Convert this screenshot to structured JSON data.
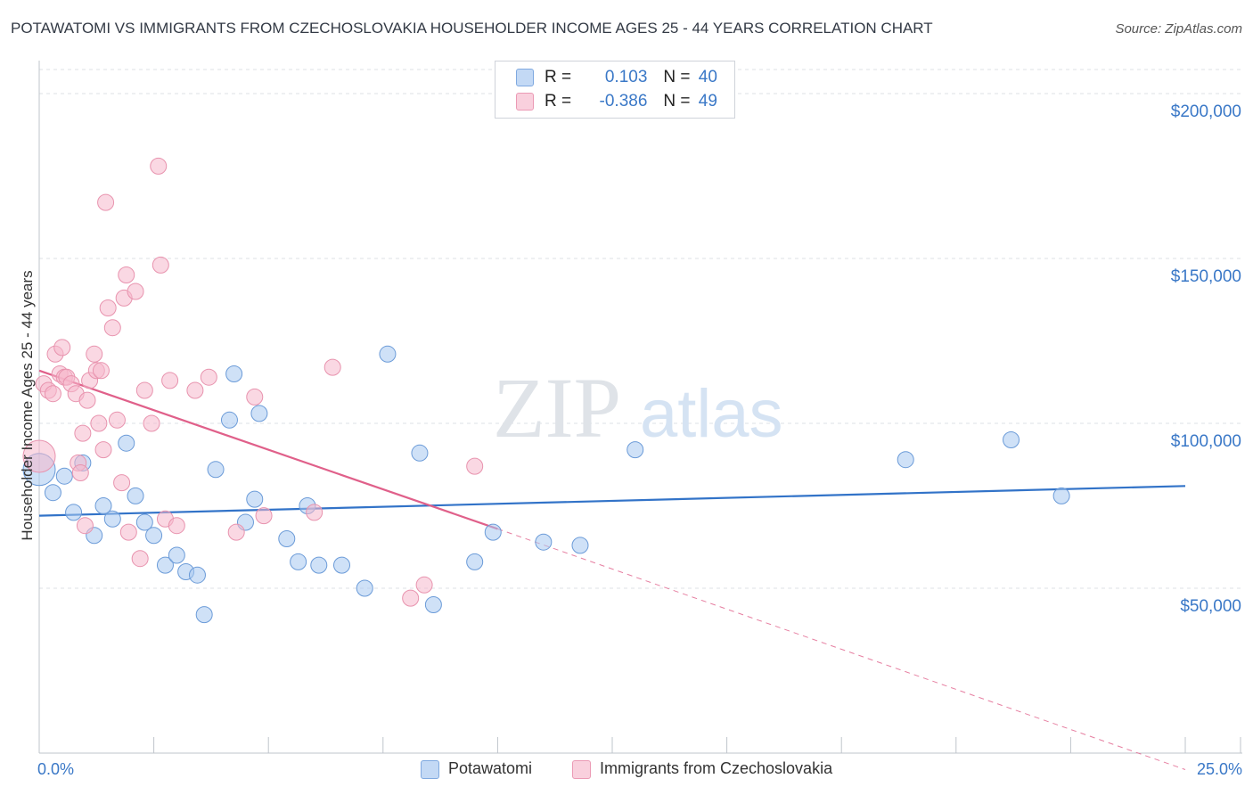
{
  "title": "POTAWATOMI VS IMMIGRANTS FROM CZECHOSLOVAKIA HOUSEHOLDER INCOME AGES 25 - 44 YEARS CORRELATION CHART",
  "source": "Source: ZipAtlas.com",
  "watermark": {
    "zip": "ZIP",
    "atlas": "atlas"
  },
  "legend": {
    "rows": [
      {
        "r_label": "R =",
        "r_value": "0.103",
        "n_label": "N =",
        "n_value": "40",
        "color": "#a8c8f0"
      },
      {
        "r_label": "R =",
        "r_value": "-0.386",
        "n_label": "N =",
        "n_value": "49",
        "color": "#f5b8cc"
      }
    ]
  },
  "chart_data": {
    "type": "scatter",
    "title": "POTAWATOMI VS IMMIGRANTS FROM CZECHOSLOVAKIA HOUSEHOLDER INCOME AGES 25 - 44 YEARS CORRELATION CHART",
    "xlabel": "",
    "ylabel": "Householder Income Ages 25 - 44 years",
    "xlim": [
      0,
      25
    ],
    "ylim": [
      0,
      210000
    ],
    "x_tick_labels": [
      "0.0%",
      "25.0%"
    ],
    "y_ticks": [
      50000,
      100000,
      150000,
      200000
    ],
    "y_tick_labels": [
      "$50,000",
      "$100,000",
      "$150,000",
      "$200,000"
    ],
    "grid": "horizontal dashed",
    "legend_position": "bottom-center",
    "series": [
      {
        "name": "Potawatomi",
        "color": "#a8c8f0",
        "stroke": "#6b9bd8",
        "trend_color": "#3273c8",
        "trend": {
          "x0": 0,
          "y0": 72000,
          "x1": 25,
          "y1": 81000
        },
        "points": [
          [
            0.0,
            86000,
            18
          ],
          [
            0.3,
            79000,
            9
          ],
          [
            0.55,
            84000,
            9
          ],
          [
            0.75,
            73000,
            9
          ],
          [
            0.95,
            88000,
            9
          ],
          [
            1.2,
            66000,
            9
          ],
          [
            1.4,
            75000,
            9
          ],
          [
            1.6,
            71000,
            9
          ],
          [
            1.9,
            94000,
            9
          ],
          [
            2.1,
            78000,
            9
          ],
          [
            2.3,
            70000,
            9
          ],
          [
            2.5,
            66000,
            9
          ],
          [
            2.75,
            57000,
            9
          ],
          [
            3.0,
            60000,
            9
          ],
          [
            3.2,
            55000,
            9
          ],
          [
            3.45,
            54000,
            9
          ],
          [
            3.6,
            42000,
            9
          ],
          [
            3.85,
            86000,
            9
          ],
          [
            4.15,
            101000,
            9
          ],
          [
            4.25,
            115000,
            9
          ],
          [
            4.5,
            70000,
            9
          ],
          [
            4.7,
            77000,
            9
          ],
          [
            4.8,
            103000,
            9
          ],
          [
            5.4,
            65000,
            9
          ],
          [
            5.65,
            58000,
            9
          ],
          [
            5.85,
            75000,
            9
          ],
          [
            6.1,
            57000,
            9
          ],
          [
            6.6,
            57000,
            9
          ],
          [
            7.1,
            50000,
            9
          ],
          [
            7.6,
            121000,
            9
          ],
          [
            8.3,
            91000,
            9
          ],
          [
            8.6,
            45000,
            9
          ],
          [
            9.5,
            58000,
            9
          ],
          [
            9.9,
            67000,
            9
          ],
          [
            11.0,
            64000,
            9
          ],
          [
            11.8,
            63000,
            9
          ],
          [
            13.0,
            92000,
            9
          ],
          [
            18.9,
            89000,
            9
          ],
          [
            21.2,
            95000,
            9
          ],
          [
            22.3,
            78000,
            9
          ]
        ]
      },
      {
        "name": "Immigrants from Czechoslovakia",
        "color": "#f5b8cc",
        "stroke": "#e893ae",
        "trend_color": "#e0608a",
        "trend": {
          "x0": 0,
          "y0": 116000,
          "x1": 10.0,
          "y1": 68000
        },
        "trend_dashed": {
          "x0": 10.0,
          "y0": 68000,
          "x1": 25,
          "y1": -5000
        },
        "points": [
          [
            0.0,
            90000,
            18
          ],
          [
            0.1,
            112000,
            9
          ],
          [
            0.2,
            110000,
            9
          ],
          [
            0.3,
            109000,
            9
          ],
          [
            0.35,
            121000,
            9
          ],
          [
            0.45,
            115000,
            9
          ],
          [
            0.5,
            123000,
            9
          ],
          [
            0.55,
            114000,
            9
          ],
          [
            0.6,
            114000,
            9
          ],
          [
            0.7,
            112000,
            9
          ],
          [
            0.8,
            109000,
            9
          ],
          [
            0.85,
            88000,
            9
          ],
          [
            0.9,
            85000,
            9
          ],
          [
            0.95,
            97000,
            9
          ],
          [
            1.0,
            69000,
            9
          ],
          [
            1.05,
            107000,
            9
          ],
          [
            1.1,
            113000,
            9
          ],
          [
            1.2,
            121000,
            9
          ],
          [
            1.25,
            116000,
            9
          ],
          [
            1.3,
            100000,
            9
          ],
          [
            1.35,
            116000,
            9
          ],
          [
            1.4,
            92000,
            9
          ],
          [
            1.45,
            167000,
            9
          ],
          [
            1.5,
            135000,
            9
          ],
          [
            1.6,
            129000,
            9
          ],
          [
            1.7,
            101000,
            9
          ],
          [
            1.8,
            82000,
            9
          ],
          [
            1.85,
            138000,
            9
          ],
          [
            1.9,
            145000,
            9
          ],
          [
            1.95,
            67000,
            9
          ],
          [
            2.1,
            140000,
            9
          ],
          [
            2.2,
            59000,
            9
          ],
          [
            2.3,
            110000,
            9
          ],
          [
            2.45,
            100000,
            9
          ],
          [
            2.6,
            178000,
            9
          ],
          [
            2.65,
            148000,
            9
          ],
          [
            2.75,
            71000,
            9
          ],
          [
            2.85,
            113000,
            9
          ],
          [
            3.0,
            69000,
            9
          ],
          [
            3.4,
            110000,
            9
          ],
          [
            3.7,
            114000,
            9
          ],
          [
            4.3,
            67000,
            9
          ],
          [
            4.7,
            108000,
            9
          ],
          [
            4.9,
            72000,
            9
          ],
          [
            6.0,
            73000,
            9
          ],
          [
            6.4,
            117000,
            9
          ],
          [
            8.1,
            47000,
            9
          ],
          [
            8.4,
            51000,
            9
          ],
          [
            9.5,
            87000,
            9
          ]
        ]
      }
    ]
  }
}
